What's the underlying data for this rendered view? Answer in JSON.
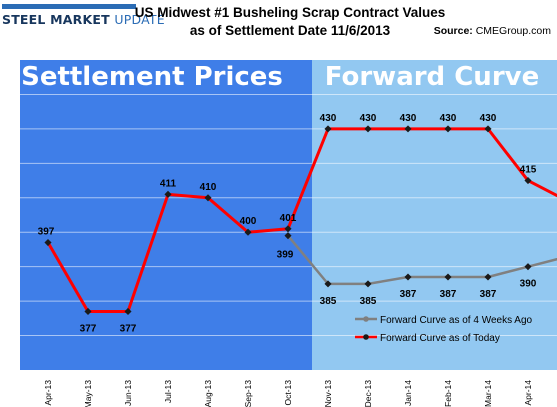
{
  "logo": {
    "word1": "STEEL",
    "word2": "MARKET",
    "word3": "UPDATE"
  },
  "title_line1": "US Midwest #1 Busheling Scrap Contract Values",
  "title_line2": "as of Settlement Date 11/6/2013",
  "source_label": "Source:",
  "source_value": "CMEGroup.com",
  "panels": {
    "left_label": "Settlement Prices",
    "right_label": "Forward Curve"
  },
  "colors": {
    "settlement_bg": "#3f7ee8",
    "forward_bg": "#92c8f1",
    "today_line": "#ff0000",
    "weeks_ago_line": "#808080",
    "marker": "#1a1a1a"
  },
  "chart_data": {
    "type": "line",
    "title": "US Midwest #1 Busheling Scrap Contract Values as of Settlement Date 11/6/2013",
    "categories": [
      "Apr-13",
      "May-13",
      "Jun-13",
      "Jul-13",
      "Aug-13",
      "Sep-13",
      "Oct-13",
      "Nov-13",
      "Dec-13",
      "Jan-14",
      "Feb-14",
      "Mar-14",
      "Apr-14"
    ],
    "ylim": [
      360,
      450
    ],
    "grid": true,
    "legend_position": "bottom-right",
    "series": [
      {
        "name": "Forward Curve as of 4 Weeks Ago",
        "color": "#808080",
        "values": [
          null,
          null,
          null,
          null,
          null,
          null,
          399,
          385,
          385,
          387,
          387,
          387,
          390
        ],
        "continues_to": 393,
        "labels": [
          "",
          "",
          "",
          "",
          "",
          "",
          "399",
          "385",
          "385",
          "387",
          "387",
          "387",
          "390"
        ]
      },
      {
        "name": "Forward Curve as of Today",
        "color": "#ff0000",
        "values": [
          397,
          377,
          377,
          411,
          410,
          400,
          401,
          430,
          430,
          430,
          430,
          430,
          415
        ],
        "continues_to": 409,
        "labels": [
          "397",
          "377",
          "377",
          "411",
          "410",
          "400",
          "401",
          "430",
          "430",
          "430",
          "430",
          "430",
          "415"
        ]
      }
    ]
  }
}
